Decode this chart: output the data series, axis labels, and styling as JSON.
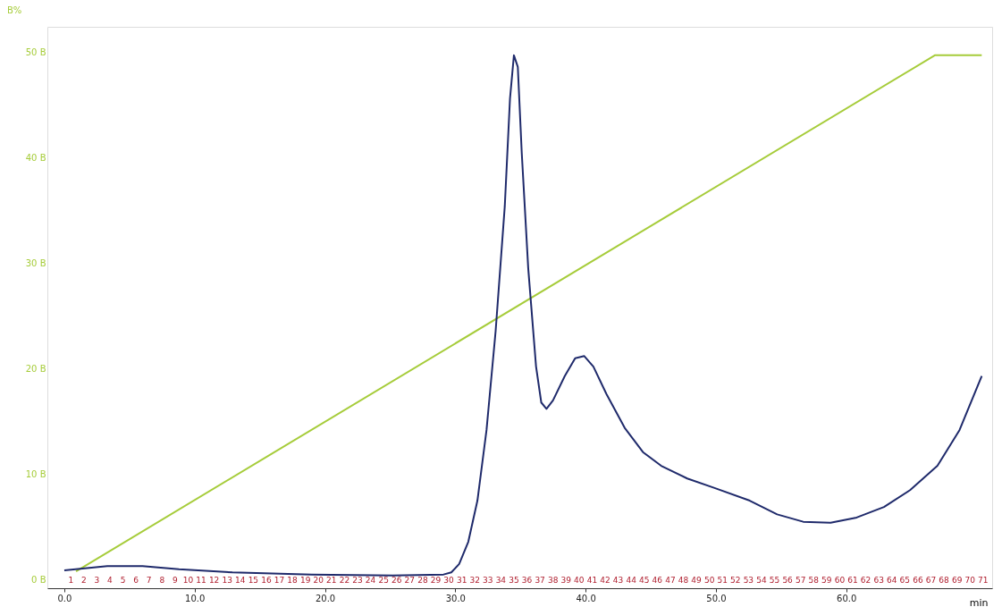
{
  "chart_data": {
    "type": "line",
    "xlabel": "min",
    "ylabel": "B%",
    "xlim": [
      -1.3,
      71.2
    ],
    "ylim": [
      -0.8,
      52.4
    ],
    "xticks": [
      {
        "value": 0,
        "label": "0.0"
      },
      {
        "value": 10,
        "label": "10.0"
      },
      {
        "value": 20,
        "label": "20.0"
      },
      {
        "value": 30,
        "label": "30.0"
      },
      {
        "value": 40,
        "label": "40.0"
      },
      {
        "value": 50,
        "label": "50.0"
      },
      {
        "value": 60,
        "label": "60.0"
      }
    ],
    "yticks": [
      {
        "value": 0,
        "label": "0 B"
      },
      {
        "value": 10,
        "label": "10 B"
      },
      {
        "value": 20,
        "label": "20 B"
      },
      {
        "value": 30,
        "label": "30 B"
      },
      {
        "value": 40,
        "label": "40 B"
      },
      {
        "value": 50,
        "label": "50 B"
      }
    ],
    "x2lim": [
      -1.3,
      71.2
    ],
    "x2ticks": [
      {
        "value": 0.5,
        "label": "1"
      },
      {
        "value": 1.5,
        "label": "2"
      },
      {
        "value": 2.5,
        "label": "3"
      },
      {
        "value": 3.5,
        "label": "4"
      },
      {
        "value": 4.5,
        "label": "5"
      },
      {
        "value": 5.5,
        "label": "6"
      },
      {
        "value": 6.5,
        "label": "7"
      },
      {
        "value": 7.5,
        "label": "8"
      },
      {
        "value": 8.5,
        "label": "9"
      },
      {
        "value": 9.5,
        "label": "10"
      },
      {
        "value": 10.5,
        "label": "11"
      },
      {
        "value": 11.5,
        "label": "12"
      },
      {
        "value": 12.5,
        "label": "13"
      },
      {
        "value": 13.5,
        "label": "14"
      },
      {
        "value": 14.5,
        "label": "15"
      },
      {
        "value": 15.5,
        "label": "16"
      },
      {
        "value": 16.5,
        "label": "17"
      },
      {
        "value": 17.5,
        "label": "18"
      },
      {
        "value": 18.5,
        "label": "19"
      },
      {
        "value": 19.5,
        "label": "20"
      },
      {
        "value": 20.5,
        "label": "21"
      },
      {
        "value": 21.5,
        "label": "22"
      },
      {
        "value": 22.5,
        "label": "23"
      },
      {
        "value": 23.5,
        "label": "24"
      },
      {
        "value": 24.5,
        "label": "25"
      },
      {
        "value": 25.5,
        "label": "26"
      },
      {
        "value": 26.5,
        "label": "27"
      },
      {
        "value": 27.5,
        "label": "28"
      },
      {
        "value": 28.5,
        "label": "29"
      },
      {
        "value": 29.5,
        "label": "30"
      },
      {
        "value": 30.5,
        "label": "31"
      },
      {
        "value": 31.5,
        "label": "32"
      },
      {
        "value": 32.5,
        "label": "33"
      },
      {
        "value": 33.5,
        "label": "34"
      },
      {
        "value": 34.5,
        "label": "35"
      },
      {
        "value": 35.5,
        "label": "36"
      },
      {
        "value": 36.5,
        "label": "37"
      },
      {
        "value": 37.5,
        "label": "38"
      },
      {
        "value": 38.5,
        "label": "39"
      },
      {
        "value": 39.5,
        "label": "40"
      },
      {
        "value": 40.5,
        "label": "41"
      },
      {
        "value": 41.5,
        "label": "42"
      },
      {
        "value": 42.5,
        "label": "43"
      },
      {
        "value": 43.5,
        "label": "44"
      },
      {
        "value": 44.5,
        "label": "45"
      },
      {
        "value": 45.5,
        "label": "46"
      },
      {
        "value": 46.5,
        "label": "47"
      },
      {
        "value": 47.5,
        "label": "48"
      },
      {
        "value": 48.5,
        "label": "49"
      },
      {
        "value": 49.5,
        "label": "50"
      },
      {
        "value": 50.5,
        "label": "51"
      },
      {
        "value": 51.5,
        "label": "52"
      },
      {
        "value": 52.5,
        "label": "53"
      },
      {
        "value": 53.5,
        "label": "54"
      },
      {
        "value": 54.5,
        "label": "55"
      },
      {
        "value": 55.5,
        "label": "56"
      },
      {
        "value": 56.5,
        "label": "57"
      },
      {
        "value": 57.5,
        "label": "58"
      },
      {
        "value": 58.5,
        "label": "59"
      },
      {
        "value": 59.5,
        "label": "60"
      },
      {
        "value": 60.5,
        "label": "61"
      },
      {
        "value": 61.5,
        "label": "62"
      },
      {
        "value": 62.5,
        "label": "63"
      },
      {
        "value": 63.5,
        "label": "64"
      },
      {
        "value": 64.5,
        "label": "65"
      },
      {
        "value": 65.5,
        "label": "66"
      },
      {
        "value": 66.5,
        "label": "67"
      },
      {
        "value": 67.5,
        "label": "68"
      },
      {
        "value": 68.5,
        "label": "69"
      },
      {
        "value": 69.5,
        "label": "70"
      },
      {
        "value": 70.5,
        "label": "71"
      }
    ],
    "grid": false,
    "marker": "none",
    "line_style": "solid",
    "series": [
      {
        "color": "#a6cc3a",
        "x": [
          0.9,
          66.8,
          70.4
        ],
        "values": [
          0.8,
          49.7,
          49.7
        ]
      },
      {
        "color": "#1f2a6b",
        "x": [
          0,
          3.3,
          6.0,
          8.8,
          12.9,
          19.0,
          25.2,
          29.1,
          29.7,
          30.3,
          31.0,
          31.7,
          32.4,
          33.1,
          33.8,
          34.2,
          34.5,
          34.8,
          35.1,
          35.6,
          36.2,
          36.6,
          37.0,
          37.5,
          38.4,
          39.2,
          39.9,
          40.6,
          41.6,
          43.0,
          44.4,
          45.8,
          47.8,
          49.9,
          52.6,
          54.7,
          56.7,
          58.8,
          60.8,
          62.9,
          64.9,
          67.0,
          68.7,
          70.4
        ],
        "values": [
          0.9,
          1.3,
          1.3,
          1.0,
          0.7,
          0.5,
          0.4,
          0.5,
          0.7,
          1.5,
          3.6,
          7.5,
          14.2,
          23.6,
          35.4,
          45.6,
          49.7,
          48.6,
          40.5,
          29.5,
          20.2,
          16.8,
          16.2,
          17.0,
          19.3,
          21.0,
          21.2,
          20.2,
          17.6,
          14.4,
          12.1,
          10.8,
          9.6,
          8.7,
          7.5,
          6.2,
          5.5,
          5.4,
          5.9,
          6.9,
          8.5,
          10.8,
          14.2,
          19.3
        ]
      }
    ]
  }
}
